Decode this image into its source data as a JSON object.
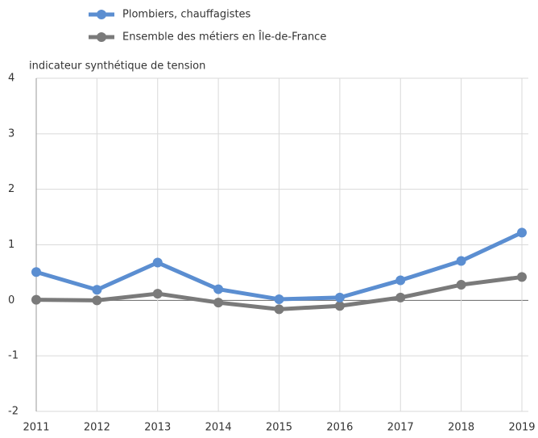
{
  "chart_data": {
    "type": "line",
    "y_axis_label": "indicateur synthétique de tension",
    "categories": [
      "2011",
      "2012",
      "2013",
      "2014",
      "2015",
      "2016",
      "2017",
      "2018",
      "2019"
    ],
    "series": [
      {
        "name": "Plombiers, chauffagistes",
        "color": "#5b8ed1",
        "values": [
          0.51,
          0.19,
          0.68,
          0.2,
          0.02,
          0.05,
          0.36,
          0.71,
          1.22
        ]
      },
      {
        "name": "Ensemble des métiers en Île-de-France",
        "color": "#7a7a7a",
        "values": [
          0.01,
          0,
          0.12,
          -0.04,
          -0.16,
          -0.1,
          0.05,
          0.28,
          0.42
        ]
      }
    ],
    "ylim": [
      -2,
      4
    ],
    "yticks": [
      -2,
      -1,
      0,
      1,
      2,
      3,
      4
    ],
    "grid": true
  }
}
